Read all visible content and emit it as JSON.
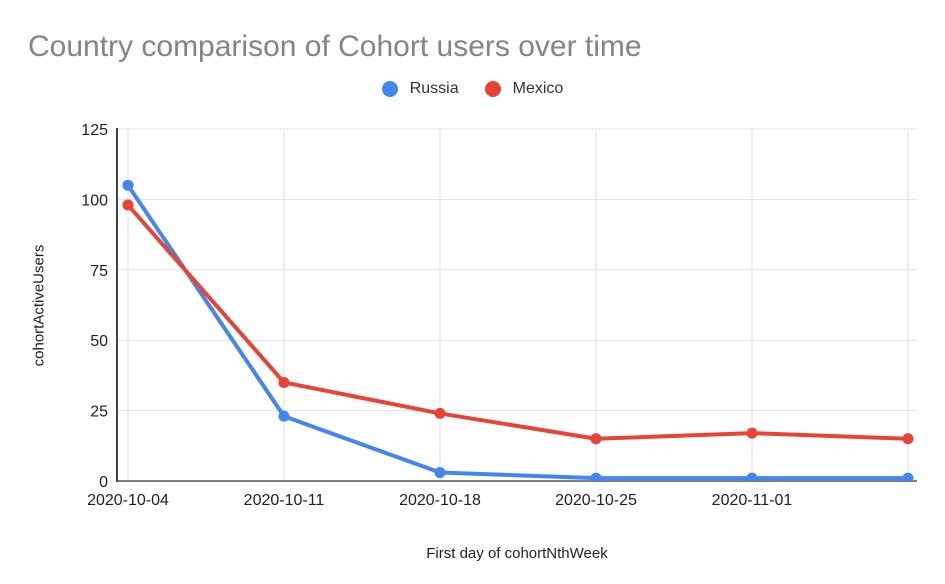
{
  "page": {
    "background": "#ffffff"
  },
  "chart_data": {
    "type": "line",
    "title": "Country comparison of Cohort users over time",
    "title_color": "#848484",
    "xlabel": "First day of cohortNthWeek",
    "ylabel": "cohortActiveUsers",
    "categories": [
      "2020-10-04",
      "2020-10-11",
      "2020-10-18",
      "2020-10-25",
      "2020-11-01",
      ""
    ],
    "series": [
      {
        "name": "Russia",
        "color": "#4285f4",
        "values": [
          105,
          23,
          3,
          1,
          1,
          1
        ]
      },
      {
        "name": "Mexico",
        "color": "#ea4335",
        "values": [
          98,
          35,
          24,
          15,
          17,
          15
        ]
      }
    ],
    "ylim": [
      0,
      125
    ],
    "y_ticks": [
      0,
      25,
      50,
      75,
      100,
      125
    ],
    "grid": true,
    "legend_position": "top",
    "gridline_color": "#e2e2e2",
    "y_axis_color": "#424242",
    "x_axis_color": "#808080"
  }
}
